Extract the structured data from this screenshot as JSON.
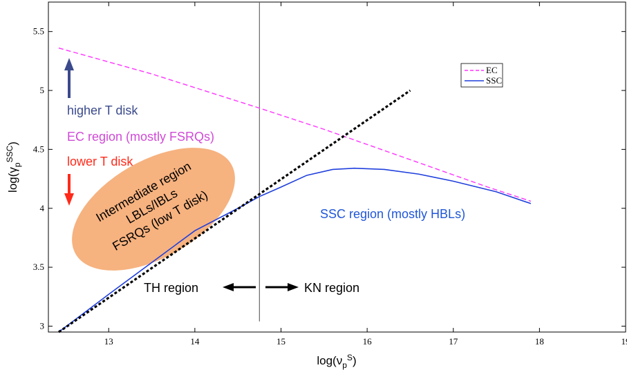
{
  "chart_data": {
    "type": "line",
    "xlabel": "log(ν_p^S)",
    "ylabel": "log(γ_p^SSC)",
    "xlim": [
      12.3,
      19.0
    ],
    "ylim": [
      2.95,
      5.75
    ],
    "xticks": [
      13,
      14,
      15,
      16,
      17,
      18,
      19
    ],
    "yticks": [
      3,
      3.5,
      4,
      4.5,
      5,
      5.5
    ],
    "grid": false,
    "legend_position": "top-right",
    "series": [
      {
        "name": "EC",
        "color": "#ff33ff",
        "style": "dashed",
        "x": [
          12.42,
          13.5,
          14.75,
          15.5,
          16.2,
          17.4,
          17.9
        ],
        "y": [
          5.36,
          5.14,
          4.85,
          4.67,
          4.49,
          4.18,
          4.06
        ]
      },
      {
        "name": "SSC",
        "color": "#1f3fdd",
        "style": "solid",
        "x": [
          12.42,
          13.0,
          13.5,
          14.0,
          14.5,
          14.75,
          15.0,
          15.3,
          15.6,
          15.85,
          16.2,
          16.6,
          17.0,
          17.5,
          17.9
        ],
        "y": [
          2.95,
          3.27,
          3.54,
          3.81,
          4.0,
          4.1,
          4.18,
          4.28,
          4.33,
          4.34,
          4.33,
          4.29,
          4.23,
          4.14,
          4.04
        ]
      },
      {
        "name": "",
        "color": "#000000",
        "style": "dotted",
        "x": [
          12.42,
          16.5
        ],
        "y": [
          2.95,
          5.0
        ]
      }
    ],
    "vertical_line": {
      "x": 14.75,
      "y_range": [
        3.04,
        5.75
      ]
    },
    "annotations": {
      "higher_t": "higher T disk",
      "ec_region": "EC region (mostly FSRQs)",
      "lower_t": "lower T disk",
      "intermediate_1": "Intermediate  region",
      "intermediate_2": "LBLs/IBLs",
      "intermediate_3": "FSRQs (low T disk)",
      "ssc_region": "SSC region (mostly HBLs)",
      "th_region": "TH region",
      "kn_region": "KN region"
    },
    "colors": {
      "higher_t": "#3a4a8c",
      "ec_region": "#d04ad6",
      "lower_t": "#ff2a1a",
      "ssc_region": "#1f56d8",
      "ellipse_fill": "#f6b27f",
      "intermediate_text": "#000000",
      "th_kn_text": "#000000",
      "up_arrow": "#3a4a8c",
      "down_arrow": "#ff2a1a"
    }
  }
}
